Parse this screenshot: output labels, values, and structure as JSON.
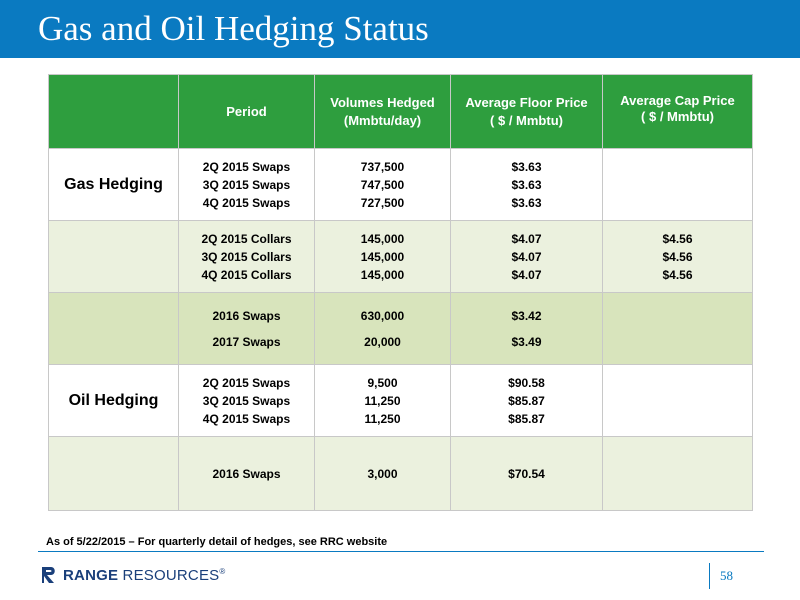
{
  "title": "Gas and Oil Hedging Status",
  "table": {
    "headers": {
      "category": "",
      "period": "Period",
      "volumes": [
        "Volumes Hedged",
        "(Mmbtu/day)"
      ],
      "floor": [
        "Average Floor Price",
        "( $ / Mmbtu)"
      ],
      "cap": [
        "Average Cap Price",
        "( $ / Mmbtu)"
      ]
    },
    "groups": [
      {
        "category": "Gas Hedging",
        "periods": [
          "2Q 2015 Swaps",
          "3Q 2015 Swaps",
          "4Q 2015 Swaps"
        ],
        "volumes": [
          "737,500",
          "747,500",
          "727,500"
        ],
        "floor": [
          "$3.63",
          "$3.63",
          "$3.63"
        ],
        "cap": []
      },
      {
        "category": "",
        "periods": [
          "2Q 2015 Collars",
          "3Q 2015 Collars",
          "4Q 2015 Collars"
        ],
        "volumes": [
          "145,000",
          "145,000",
          "145,000"
        ],
        "floor": [
          "$4.07",
          "$4.07",
          "$4.07"
        ],
        "cap": [
          "$4.56",
          "$4.56",
          "$4.56"
        ]
      },
      {
        "category": "",
        "periods": [
          "2016 Swaps",
          "2017 Swaps"
        ],
        "volumes": [
          "630,000",
          "20,000"
        ],
        "floor": [
          "$3.42",
          "$3.49"
        ],
        "cap": []
      },
      {
        "category": "Oil Hedging",
        "periods": [
          "2Q 2015 Swaps",
          "3Q 2015 Swaps",
          "4Q 2015 Swaps"
        ],
        "volumes": [
          "9,500",
          "11,250",
          "11,250"
        ],
        "floor": [
          "$90.58",
          "$85.87",
          "$85.87"
        ],
        "cap": []
      },
      {
        "category": "",
        "periods": [
          "2016 Swaps"
        ],
        "volumes": [
          "3,000"
        ],
        "floor": [
          "$70.54"
        ],
        "cap": []
      }
    ]
  },
  "footnote": "As of 5/22/2015 – For quarterly detail of hedges, see RRC website",
  "logo": {
    "bold": "RANGE",
    "regular": "RESOURCES",
    "mark": "®"
  },
  "page_number": "58",
  "colors": {
    "title_bar": "#0a7ac1",
    "header_green": "#2e9e3e",
    "row_light": "#ebf1de",
    "row_mid": "#d8e4bc",
    "logo_navy": "#1a3f7a"
  }
}
